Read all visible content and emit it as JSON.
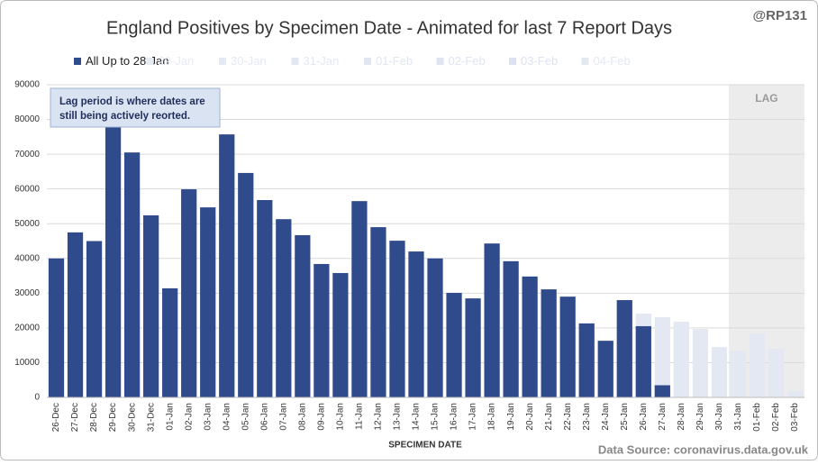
{
  "chart_data": {
    "type": "bar",
    "title": "England Positives by Specimen Date - Animated for last 7 Report Days",
    "handle": "@RP131",
    "source": "Data Source: coronavirus.data.gov.uk",
    "x_label": "SPECIMEN DATE",
    "lag_label": "LAG",
    "annotation": [
      "Lag period is where dates are",
      "still being actively  reorted."
    ],
    "categories": [
      "26-Dec",
      "27-Dec",
      "28-Dec",
      "29-Dec",
      "30-Dec",
      "31-Dec",
      "01-Jan",
      "02-Jan",
      "03-Jan",
      "04-Jan",
      "05-Jan",
      "06-Jan",
      "07-Jan",
      "08-Jan",
      "09-Jan",
      "10-Jan",
      "11-Jan",
      "12-Jan",
      "13-Jan",
      "14-Jan",
      "15-Jan",
      "16-Jan",
      "17-Jan",
      "18-Jan",
      "19-Jan",
      "20-Jan",
      "21-Jan",
      "22-Jan",
      "23-Jan",
      "24-Jan",
      "25-Jan",
      "26-Jan",
      "27-Jan",
      "28-Jan",
      "29-Jan",
      "30-Jan",
      "31-Jan",
      "01-Feb",
      "02-Feb",
      "03-Feb"
    ],
    "series": [
      {
        "name": "All Up to 28-Jan",
        "color": "#2f4b8b",
        "values": [
          40000,
          47500,
          45000,
          79000,
          70500,
          52400,
          31400,
          59900,
          54700,
          75700,
          64600,
          56800,
          51300,
          46700,
          38400,
          35800,
          56500,
          49000,
          45100,
          42000,
          40000,
          30100,
          28500,
          44300,
          39200,
          34800,
          31100,
          29000,
          21300,
          16300,
          28000,
          20500,
          3500,
          null,
          null,
          null,
          null,
          null,
          null,
          null
        ]
      },
      {
        "name": "29-Jan",
        "color": "#e6ebf4",
        "values": [
          null,
          null,
          null,
          null,
          null,
          null,
          null,
          null,
          null,
          null,
          null,
          null,
          null,
          null,
          null,
          null,
          null,
          null,
          null,
          null,
          null,
          null,
          null,
          null,
          null,
          null,
          null,
          null,
          null,
          null,
          null,
          null,
          null,
          null,
          null,
          null,
          null,
          null,
          null,
          null
        ]
      },
      {
        "name": "30-Jan",
        "color": "#e4e9f3",
        "values": [
          null,
          null,
          null,
          null,
          null,
          null,
          null,
          null,
          null,
          null,
          null,
          null,
          null,
          null,
          null,
          null,
          null,
          null,
          null,
          null,
          null,
          null,
          null,
          null,
          null,
          null,
          null,
          null,
          null,
          null,
          null,
          null,
          null,
          null,
          null,
          null,
          null,
          null,
          null,
          null
        ]
      },
      {
        "name": "31-Jan",
        "color": "#e2e7f2",
        "values": [
          null,
          null,
          null,
          null,
          null,
          null,
          null,
          null,
          null,
          null,
          null,
          null,
          null,
          null,
          null,
          null,
          null,
          null,
          null,
          null,
          null,
          null,
          null,
          null,
          null,
          null,
          null,
          null,
          null,
          null,
          null,
          null,
          null,
          null,
          null,
          null,
          null,
          null,
          null,
          null
        ]
      },
      {
        "name": "01-Feb",
        "color": "#e0e6f2",
        "values": [
          null,
          null,
          null,
          null,
          null,
          null,
          null,
          null,
          null,
          null,
          null,
          null,
          null,
          null,
          null,
          null,
          null,
          null,
          null,
          null,
          null,
          null,
          null,
          null,
          null,
          null,
          null,
          null,
          null,
          null,
          null,
          null,
          null,
          null,
          null,
          null,
          null,
          null,
          null,
          null
        ]
      },
      {
        "name": "02-Feb",
        "color": "#dee4f1",
        "values": [
          null,
          null,
          null,
          null,
          null,
          null,
          null,
          null,
          null,
          null,
          null,
          null,
          null,
          null,
          null,
          null,
          null,
          null,
          null,
          null,
          null,
          null,
          null,
          null,
          null,
          null,
          null,
          null,
          null,
          null,
          null,
          null,
          null,
          null,
          null,
          null,
          null,
          null,
          null,
          null
        ]
      },
      {
        "name": "03-Feb",
        "color": "#dce2f0",
        "values": [
          null,
          null,
          null,
          null,
          null,
          null,
          null,
          null,
          null,
          null,
          null,
          null,
          null,
          null,
          null,
          null,
          null,
          null,
          null,
          null,
          null,
          null,
          null,
          null,
          null,
          null,
          null,
          null,
          null,
          null,
          null,
          null,
          null,
          null,
          null,
          null,
          null,
          null,
          null,
          null
        ]
      },
      {
        "name": "04-Feb",
        "color": "#e3e8f3",
        "values": [
          null,
          null,
          null,
          null,
          null,
          null,
          null,
          null,
          null,
          null,
          null,
          null,
          null,
          null,
          null,
          null,
          null,
          null,
          null,
          null,
          null,
          null,
          null,
          null,
          null,
          null,
          null,
          null,
          null,
          null,
          null,
          24100,
          23100,
          21800,
          19700,
          14500,
          13500,
          18400,
          14000,
          1800
        ]
      }
    ],
    "ylim": [
      0,
      90000
    ],
    "yticks": [
      0,
      10000,
      20000,
      30000,
      40000,
      50000,
      60000,
      70000,
      80000,
      90000
    ],
    "grid": true
  }
}
